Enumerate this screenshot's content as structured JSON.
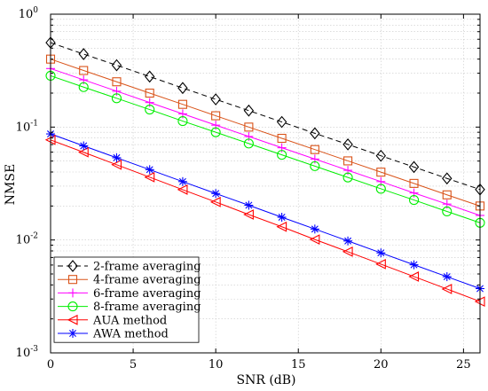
{
  "chart_data": {
    "type": "line",
    "xlabel": "SNR (dB)",
    "ylabel": "NMSE",
    "x_scale": "linear",
    "y_scale": "log",
    "xlim": [
      0,
      26
    ],
    "ylim": [
      0.001,
      1
    ],
    "x_ticks": [
      "0",
      "5",
      "10",
      "15",
      "20",
      "25"
    ],
    "x_tick_values": [
      0,
      5,
      10,
      15,
      20,
      25
    ],
    "y_ticks": [
      {
        "base": "10",
        "exp": "0",
        "value": 1
      },
      {
        "base": "10",
        "exp": "-1",
        "value": 0.1
      },
      {
        "base": "10",
        "exp": "-2",
        "value": 0.01
      },
      {
        "base": "10",
        "exp": "-3",
        "value": 0.001
      }
    ],
    "grid": true,
    "legend_position": "bottom-left",
    "x": [
      0,
      2,
      4,
      6,
      8,
      10,
      12,
      14,
      16,
      18,
      20,
      22,
      24,
      26
    ],
    "series": [
      {
        "name": "2-frame averaging",
        "color": "#000000",
        "marker": "diamond",
        "dash": true,
        "values": [
          0.56,
          0.443,
          0.353,
          0.28,
          0.222,
          0.176,
          0.14,
          0.111,
          0.088,
          0.0702,
          0.0557,
          0.0443,
          0.0351,
          0.028
        ]
      },
      {
        "name": "4-frame averaging",
        "color": "#d95319",
        "marker": "square",
        "dash": false,
        "values": [
          0.4,
          0.317,
          0.252,
          0.2,
          0.159,
          0.126,
          0.1,
          0.0795,
          0.0632,
          0.0502,
          0.0399,
          0.0317,
          0.0251,
          0.02
        ]
      },
      {
        "name": "6-frame averaging",
        "color": "#ff00ff",
        "marker": "plus",
        "dash": false,
        "values": [
          0.33,
          0.262,
          0.208,
          0.165,
          0.131,
          0.104,
          0.0826,
          0.0656,
          0.0521,
          0.0414,
          0.0329,
          0.0261,
          0.0208,
          0.0165
        ]
      },
      {
        "name": "8-frame averaging",
        "color": "#00ee00",
        "marker": "circle",
        "dash": false,
        "values": [
          0.285,
          0.226,
          0.18,
          0.143,
          0.113,
          0.09,
          0.0715,
          0.0568,
          0.0451,
          0.0358,
          0.0284,
          0.0226,
          0.0179,
          0.0142
        ]
      },
      {
        "name": "AUA method",
        "color": "#ff0000",
        "marker": "triangle-left",
        "dash": false,
        "values": [
          0.077,
          0.0598,
          0.0464,
          0.036,
          0.0279,
          0.0217,
          0.0168,
          0.0131,
          0.0101,
          0.00787,
          0.00611,
          0.00474,
          0.00368,
          0.00285
        ]
      },
      {
        "name": "AWA method",
        "color": "#0000ff",
        "marker": "asterisk",
        "dash": false,
        "values": [
          0.087,
          0.0682,
          0.0535,
          0.042,
          0.0329,
          0.0258,
          0.0203,
          0.0159,
          0.0125,
          0.0098,
          0.00769,
          0.00603,
          0.00473,
          0.00371
        ]
      }
    ]
  }
}
